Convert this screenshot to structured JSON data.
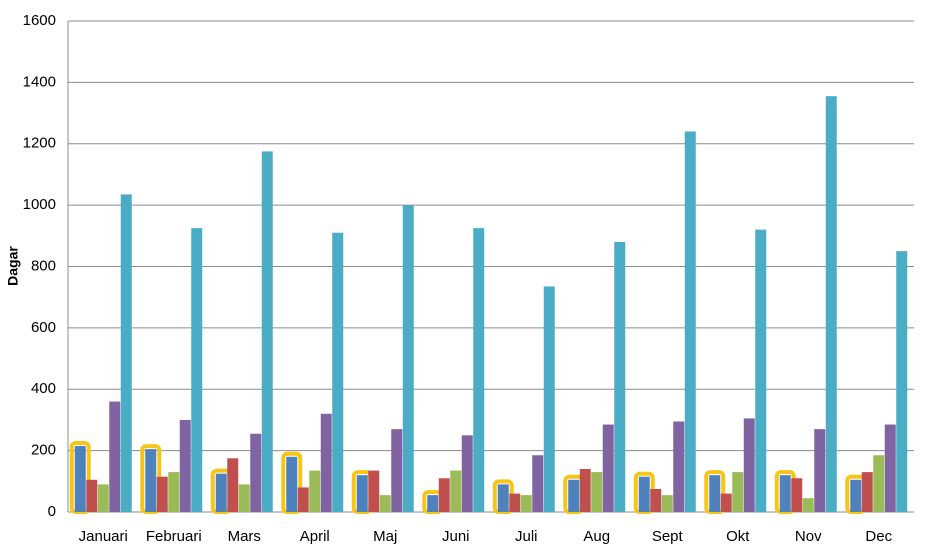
{
  "chart_data": {
    "type": "bar",
    "y_label": "Dagar",
    "categories": [
      "Januari",
      "Februari",
      "Mars",
      "April",
      "Maj",
      "Juni",
      "Juli",
      "Aug",
      "Sept",
      "Okt",
      "Nov",
      "Dec"
    ],
    "series": [
      {
        "color": "#4f81bd",
        "outline": "#f5c518",
        "values": [
          215,
          205,
          125,
          180,
          120,
          55,
          90,
          105,
          115,
          120,
          120,
          105
        ]
      },
      {
        "color": "#c0504d",
        "values": [
          105,
          115,
          175,
          80,
          135,
          110,
          60,
          140,
          75,
          60,
          110,
          130
        ]
      },
      {
        "color": "#9bbb59",
        "values": [
          90,
          130,
          90,
          135,
          55,
          135,
          55,
          130,
          55,
          130,
          45,
          185
        ]
      },
      {
        "color": "#8064a2",
        "values": [
          360,
          300,
          255,
          320,
          270,
          250,
          185,
          285,
          295,
          305,
          270,
          285
        ]
      },
      {
        "color": "#4bacc6",
        "values": [
          1035,
          925,
          1175,
          910,
          1000,
          925,
          735,
          880,
          1240,
          920,
          1355,
          850
        ]
      }
    ],
    "ylim": [
      0,
      1600
    ],
    "yticks": [
      0,
      200,
      400,
      600,
      800,
      1000,
      1200,
      1400,
      1600
    ],
    "grid": true
  }
}
